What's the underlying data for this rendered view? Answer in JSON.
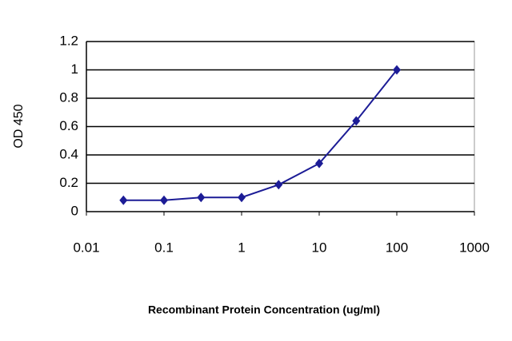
{
  "chart_data": {
    "type": "line",
    "x_label": "Recombinant Protein Concentration (ug/ml)",
    "y_label": "OD 450",
    "x": [
      0.03,
      0.1,
      0.3,
      1,
      3,
      10,
      30,
      100
    ],
    "values": [
      0.08,
      0.08,
      0.1,
      0.1,
      0.19,
      0.34,
      0.64,
      1.0
    ],
    "color": "#1c1c96",
    "xscale": "log",
    "xlim": [
      0.01,
      1000
    ],
    "xticks": [
      0.01,
      0.1,
      1,
      10,
      100,
      1000
    ],
    "ylim": [
      0,
      1.2
    ],
    "yticks": [
      0,
      0.2,
      0.4,
      0.6,
      0.8,
      1,
      1.2
    ],
    "grid": true
  }
}
